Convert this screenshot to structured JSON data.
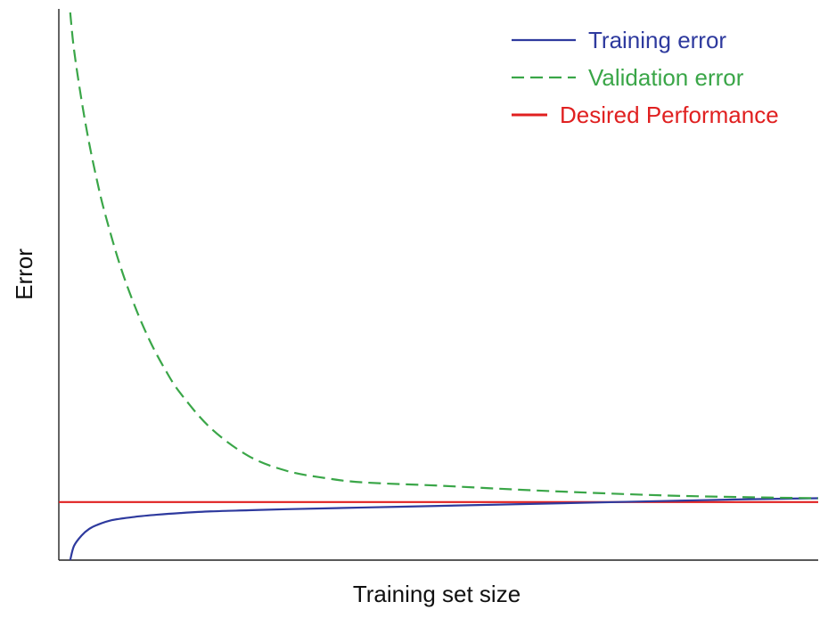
{
  "chart_data": {
    "type": "line",
    "title": "",
    "xlabel": "Training set size",
    "ylabel": "Error",
    "xlim": [
      0,
      100
    ],
    "ylim": [
      0,
      100
    ],
    "grid": false,
    "legend_position": "top-right",
    "x_ticks": [],
    "y_ticks": [],
    "series": [
      {
        "name": "Training error",
        "color": "#2e3a9e",
        "style": "solid",
        "x": [
          1.5,
          2,
          3,
          4,
          5,
          7,
          10,
          13,
          16,
          20,
          25,
          30,
          40,
          50,
          60,
          70,
          80,
          90,
          100
        ],
        "y": [
          0,
          2.6,
          4.5,
          5.7,
          6.4,
          7.3,
          7.9,
          8.3,
          8.6,
          8.9,
          9.1,
          9.3,
          9.6,
          9.9,
          10.2,
          10.5,
          10.8,
          11.1,
          11.3
        ]
      },
      {
        "name": "Validation error",
        "color": "#3aa648",
        "style": "dashed",
        "x": [
          1.5,
          2,
          3,
          4,
          5,
          6,
          8,
          10,
          12,
          14,
          16,
          20,
          25,
          30,
          35,
          40,
          50,
          60,
          70,
          80,
          90,
          100
        ],
        "y": [
          100,
          93.2,
          83.9,
          76.1,
          69.5,
          63.7,
          54.1,
          46.4,
          40.0,
          34.8,
          30.5,
          24.1,
          19.0,
          16.3,
          15.0,
          14.2,
          13.6,
          12.9,
          12.3,
          11.8,
          11.5,
          11.3
        ]
      },
      {
        "name": "Desired Performance",
        "color": "#e02020",
        "style": "solid",
        "x": [
          0,
          100
        ],
        "y": [
          10.6,
          10.6
        ]
      }
    ]
  }
}
